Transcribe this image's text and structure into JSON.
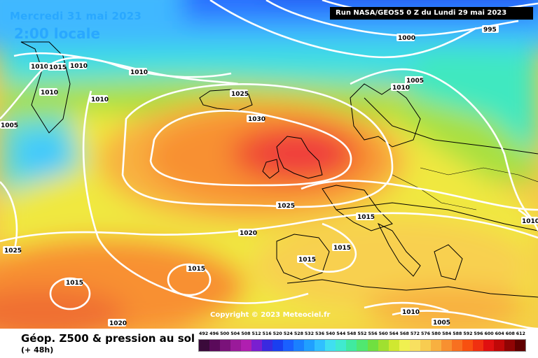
{
  "header": {
    "date": "Mercredi 31 mai 2023",
    "time": "2:00 locale",
    "run": "Run NASA/GEOS5 0 Z du Lundi 29 mai 2023"
  },
  "copyright": "Copyright © 2023 Meteociel.fr",
  "footer": {
    "caption": "Géop. Z500 & pression au sol",
    "subcaption": "(+ 48h)"
  },
  "isobar_labels": [
    "995",
    "1000",
    "1005",
    "1010",
    "1010",
    "1010",
    "1010",
    "1015",
    "1010",
    "1010",
    "1005",
    "1025",
    "1030",
    "1025",
    "1020",
    "1015",
    "1015",
    "1015",
    "1025",
    "1015",
    "1015",
    "1010",
    "1005",
    "1020",
    "1010"
  ],
  "scale": {
    "values": [
      "492",
      "496",
      "500",
      "504",
      "508",
      "512",
      "516",
      "520",
      "524",
      "528",
      "532",
      "536",
      "540",
      "544",
      "548",
      "552",
      "556",
      "560",
      "564",
      "568",
      "572",
      "576",
      "580",
      "584",
      "588",
      "592",
      "596",
      "600",
      "604",
      "608",
      "612"
    ],
    "colors": [
      "#3a0a3a",
      "#5a0a5a",
      "#7a127a",
      "#9a1a9a",
      "#b01fb0",
      "#7a1fd0",
      "#3a2ae0",
      "#1a3ff0",
      "#1a60ff",
      "#1a80ff",
      "#20a0ff",
      "#30c0ff",
      "#40dff0",
      "#40ead0",
      "#40eaa0",
      "#50e870",
      "#70e040",
      "#a0e030",
      "#d0e830",
      "#f0f050",
      "#f8e060",
      "#f8cc50",
      "#f8b040",
      "#f89030",
      "#f87020",
      "#f85010",
      "#f03010",
      "#e01010",
      "#c00808",
      "#900404",
      "#600000"
    ]
  }
}
